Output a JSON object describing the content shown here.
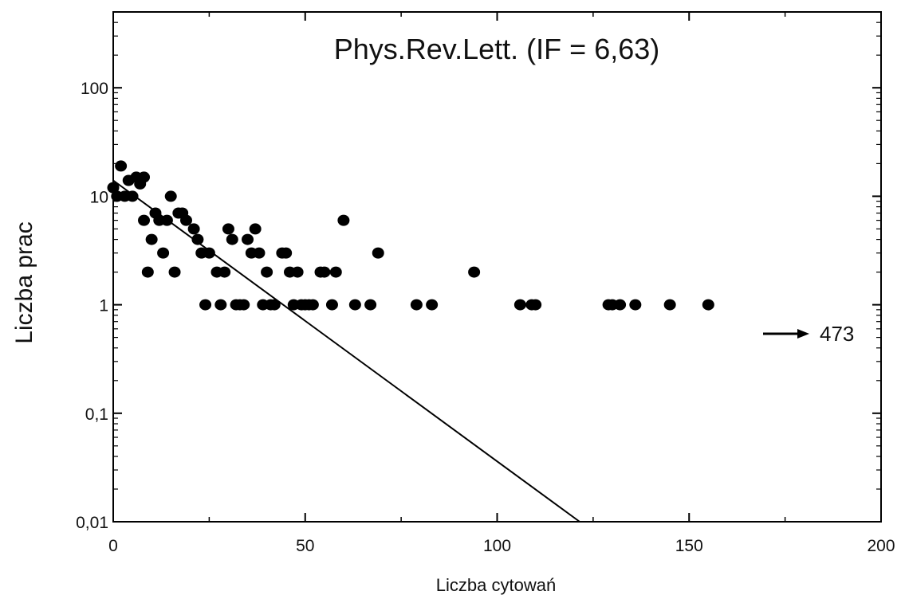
{
  "chart_data": {
    "type": "scatter",
    "title": "Phys.Rev.Lett. (IF = 6,63)",
    "xlabel": "Liczba cytowań",
    "ylabel": "Liczba prac",
    "xlim": [
      0,
      200
    ],
    "ylim": [
      0.01,
      500
    ],
    "yscale": "log",
    "grid": false,
    "x_ticks": [
      0,
      50,
      100,
      150,
      200
    ],
    "x_tick_labels": [
      "0",
      "50",
      "100",
      "150",
      "200"
    ],
    "y_ticks": [
      0.01,
      0.1,
      1,
      10,
      100
    ],
    "y_tick_labels": [
      "0,01",
      "0,1",
      "1",
      "10",
      "100"
    ],
    "points": [
      [
        0,
        12
      ],
      [
        1,
        10
      ],
      [
        2,
        19
      ],
      [
        3,
        10
      ],
      [
        4,
        14
      ],
      [
        5,
        10
      ],
      [
        6,
        15
      ],
      [
        7,
        13
      ],
      [
        8,
        15
      ],
      [
        8,
        6
      ],
      [
        9,
        2
      ],
      [
        10,
        4
      ],
      [
        11,
        7
      ],
      [
        12,
        6
      ],
      [
        13,
        3
      ],
      [
        14,
        6
      ],
      [
        15,
        10
      ],
      [
        16,
        2
      ],
      [
        17,
        7
      ],
      [
        18,
        7
      ],
      [
        19,
        6
      ],
      [
        21,
        5
      ],
      [
        22,
        4
      ],
      [
        23,
        3
      ],
      [
        24,
        1
      ],
      [
        25,
        3
      ],
      [
        27,
        2
      ],
      [
        28,
        1
      ],
      [
        29,
        2
      ],
      [
        30,
        5
      ],
      [
        31,
        4
      ],
      [
        32,
        1
      ],
      [
        33,
        1
      ],
      [
        34,
        1
      ],
      [
        35,
        4
      ],
      [
        36,
        3
      ],
      [
        37,
        5
      ],
      [
        38,
        3
      ],
      [
        39,
        1
      ],
      [
        40,
        2
      ],
      [
        41,
        1
      ],
      [
        42,
        1
      ],
      [
        44,
        3
      ],
      [
        45,
        3
      ],
      [
        46,
        2
      ],
      [
        47,
        1
      ],
      [
        48,
        2
      ],
      [
        49,
        1
      ],
      [
        50,
        1
      ],
      [
        51,
        1
      ],
      [
        52,
        1
      ],
      [
        54,
        2
      ],
      [
        55,
        2
      ],
      [
        57,
        1
      ],
      [
        58,
        2
      ],
      [
        60,
        6
      ],
      [
        63,
        1
      ],
      [
        67,
        1
      ],
      [
        69,
        3
      ],
      [
        79,
        1
      ],
      [
        83,
        1
      ],
      [
        94,
        2
      ],
      [
        106,
        1
      ],
      [
        109,
        1
      ],
      [
        110,
        1
      ],
      [
        129,
        1
      ],
      [
        130,
        1
      ],
      [
        132,
        1
      ],
      [
        136,
        1
      ],
      [
        145,
        1
      ],
      [
        155,
        1
      ]
    ],
    "fit_line": {
      "x": [
        0,
        121.5
      ],
      "y": [
        14,
        0.01
      ]
    },
    "annotations": [
      {
        "text": "473",
        "arrow": "right",
        "x": 185,
        "y": 0.75
      }
    ]
  }
}
